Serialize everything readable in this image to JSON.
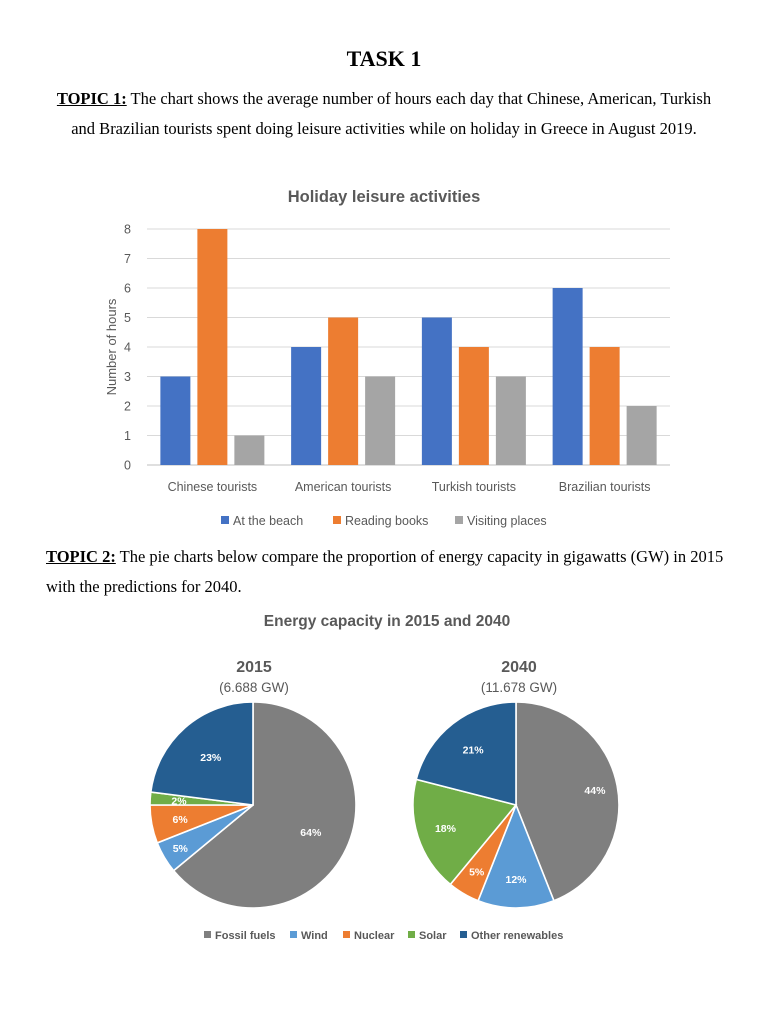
{
  "page": {
    "title": "TASK 1",
    "topic1": {
      "label": "TOPIC 1:",
      "text": " The chart shows the average number of hours each day that Chinese, American, Turkish and Brazilian tourists spent doing leisure activities while on holiday in Greece in August 2019."
    },
    "topic2": {
      "label": "TOPIC 2:",
      "text": " The pie charts below compare the proportion of energy capacity in gigawatts (GW) in 2015 with the predictions for 2040."
    }
  },
  "chart_data": [
    {
      "type": "bar",
      "title": "Holiday leisure activities",
      "xlabel": "",
      "ylabel": "Number of hours",
      "ylim": [
        0,
        8
      ],
      "yticks": [
        0,
        1,
        2,
        3,
        4,
        5,
        6,
        7,
        8
      ],
      "grid": true,
      "legend": "bottom",
      "categories": [
        "Chinese tourists",
        "American tourists",
        "Turkish tourists",
        "Brazilian tourists"
      ],
      "series": [
        {
          "name": "At the beach",
          "values": [
            3,
            4,
            5,
            6
          ],
          "color": "#4472C4"
        },
        {
          "name": "Reading books",
          "values": [
            8,
            5,
            4,
            4
          ],
          "color": "#ED7D31"
        },
        {
          "name": "Visiting places",
          "values": [
            1,
            3,
            3,
            2
          ],
          "color": "#A5A5A5"
        }
      ]
    },
    {
      "type": "pie",
      "title": "Energy capacity in 2015 and 2040",
      "legend": "bottom",
      "categories": [
        "Fossil fuels",
        "Wind",
        "Nuclear",
        "Solar",
        "Other renewables"
      ],
      "colors": [
        "#7F7F7F",
        "#5B9BD5",
        "#ED7D31",
        "#70AD47",
        "#255E91"
      ],
      "pies": [
        {
          "title": "2015",
          "subtitle": "(6.688 GW)",
          "values": [
            64,
            5,
            6,
            2,
            23
          ],
          "labels": [
            "64%",
            "5%",
            "6%",
            "2%",
            "23%"
          ]
        },
        {
          "title": "2040",
          "subtitle": "(11.678 GW)",
          "values": [
            44,
            12,
            5,
            18,
            21
          ],
          "labels": [
            "44%",
            "12%",
            "5%",
            "18%",
            "21%"
          ]
        }
      ]
    }
  ]
}
